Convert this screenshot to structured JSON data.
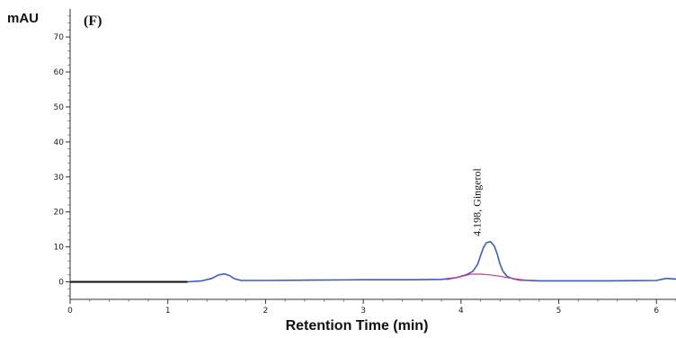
{
  "panel_label": "(F)",
  "chart_data": {
    "type": "line",
    "title": "",
    "xlabel": "Retention Time (min)",
    "ylabel": "mAU",
    "xlim": [
      0,
      6.2
    ],
    "ylim": [
      -5,
      78
    ],
    "x_ticks": [
      0,
      1,
      2,
      3,
      4,
      5,
      6
    ],
    "y_ticks": [
      0,
      10,
      20,
      30,
      40,
      50,
      60,
      70
    ],
    "grid": false,
    "series": [
      {
        "color": "#3d5bbf",
        "x": [
          0,
          1.2,
          1.35,
          1.45,
          1.52,
          1.58,
          1.63,
          1.68,
          1.75,
          2.0,
          2.5,
          3.0,
          3.5,
          3.8,
          3.95,
          4.05,
          4.12,
          4.17,
          4.2,
          4.23,
          4.26,
          4.3,
          4.34,
          4.37,
          4.4,
          4.43,
          4.47,
          4.52,
          4.6,
          4.8,
          5.0,
          5.5,
          6.0,
          6.1,
          6.2
        ],
        "y": [
          0,
          0,
          0.3,
          1.0,
          2.0,
          2.3,
          1.8,
          0.9,
          0.4,
          0.4,
          0.5,
          0.6,
          0.6,
          0.7,
          1.2,
          2.0,
          3.0,
          5.0,
          7.5,
          9.8,
          11.2,
          11.5,
          10.3,
          8.0,
          5.0,
          3.0,
          1.6,
          1.0,
          0.5,
          0.3,
          0.3,
          0.3,
          0.4,
          1.0,
          0.8
        ]
      },
      {
        "color": "#cc3a8f",
        "x": [
          3.85,
          4.0,
          4.1,
          4.2,
          4.3,
          4.4,
          4.5,
          4.6,
          4.7
        ],
        "y": [
          0.6,
          1.5,
          2.2,
          2.2,
          2.0,
          1.6,
          1.1,
          0.7,
          0.4
        ]
      }
    ],
    "dark_segment": {
      "color": "#1a1a1a",
      "x": [
        0,
        1.2
      ]
    },
    "annotations": [
      {
        "text": "4.198, Gingerol",
        "x": 4.2,
        "y": 12
      }
    ]
  }
}
